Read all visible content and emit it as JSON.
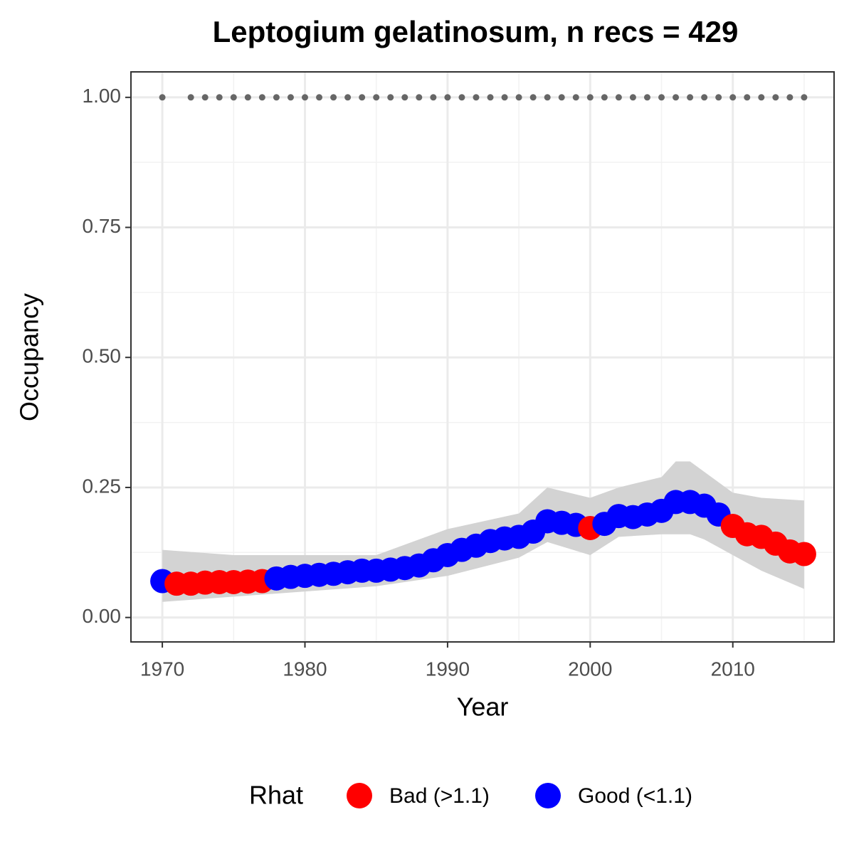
{
  "chart_data": {
    "type": "scatter",
    "title": "Leptogium gelatinosum, n recs = 429",
    "x_label": "Year",
    "y_label": "Occupancy",
    "legend_title": "Rhat",
    "xlim": [
      1967.8,
      2017.1
    ],
    "ylim": [
      -0.047,
      1.049
    ],
    "xticks": [
      1970,
      1980,
      1990,
      2000,
      2010
    ],
    "x_minor_ticks": [
      1975,
      1985,
      1995,
      2005,
      2015
    ],
    "yticks": [
      {
        "value": 0,
        "label": "0.00"
      },
      {
        "value": 0.25,
        "label": "0.25"
      },
      {
        "value": 0.5,
        "label": "0.50"
      },
      {
        "value": 0.75,
        "label": "0.75"
      },
      {
        "value": 1,
        "label": "1.00"
      }
    ],
    "y_minor_ticks": [
      0.125,
      0.375,
      0.625,
      0.875
    ],
    "grid": true,
    "x": [
      1970,
      1971,
      1972,
      1973,
      1974,
      1975,
      1976,
      1977,
      1978,
      1979,
      1980,
      1981,
      1982,
      1983,
      1984,
      1985,
      1986,
      1987,
      1988,
      1989,
      1990,
      1991,
      1992,
      1993,
      1994,
      1995,
      1996,
      1997,
      1998,
      1999,
      2000,
      2001,
      2002,
      2003,
      2004,
      2005,
      2006,
      2007,
      2008,
      2009,
      2010,
      2011,
      2012,
      2013,
      2014,
      2015
    ],
    "series": [
      {
        "name": "Bad (>1.1)",
        "color": "#ff0000",
        "values": [
          null,
          0.065,
          0.065,
          0.067,
          0.068,
          0.068,
          0.069,
          0.07,
          null,
          null,
          null,
          null,
          null,
          null,
          null,
          null,
          null,
          null,
          null,
          null,
          null,
          null,
          null,
          null,
          null,
          null,
          null,
          null,
          null,
          null,
          0.172,
          null,
          null,
          null,
          null,
          null,
          null,
          null,
          null,
          null,
          0.176,
          0.16,
          0.155,
          0.142,
          0.127,
          0.122
        ]
      },
      {
        "name": "Good (<1.1)",
        "color": "#0000ff",
        "values": [
          0.07,
          null,
          null,
          null,
          null,
          null,
          null,
          null,
          0.075,
          0.078,
          0.08,
          0.082,
          0.084,
          0.087,
          0.09,
          0.09,
          0.092,
          0.095,
          0.1,
          0.11,
          0.12,
          0.13,
          0.138,
          0.147,
          0.152,
          0.155,
          0.165,
          0.185,
          0.182,
          0.178,
          null,
          0.18,
          0.195,
          0.193,
          0.198,
          0.205,
          0.222,
          0.222,
          0.215,
          0.198,
          null,
          null,
          null,
          null,
          null,
          null
        ]
      }
    ],
    "ribbon": {
      "color": "#d3d3d3",
      "x": [
        1970,
        1975,
        1980,
        1985,
        1990,
        1995,
        1997,
        2000,
        2002,
        2005,
        2006,
        2007,
        2008,
        2010,
        2012,
        2015
      ],
      "upper": [
        0.13,
        0.12,
        0.12,
        0.12,
        0.17,
        0.2,
        0.25,
        0.23,
        0.25,
        0.27,
        0.3,
        0.3,
        0.28,
        0.24,
        0.23,
        0.225
      ],
      "lower": [
        0.03,
        0.04,
        0.05,
        0.06,
        0.08,
        0.115,
        0.145,
        0.12,
        0.155,
        0.16,
        0.16,
        0.16,
        0.15,
        0.12,
        0.09,
        0.055
      ]
    },
    "detections": {
      "color": "#666666",
      "x": [
        1970,
        1972,
        1973,
        1974,
        1975,
        1976,
        1977,
        1978,
        1979,
        1980,
        1981,
        1982,
        1983,
        1984,
        1985,
        1986,
        1987,
        1988,
        1989,
        1990,
        1991,
        1992,
        1993,
        1994,
        1995,
        1996,
        1997,
        1998,
        1999,
        2000,
        2001,
        2002,
        2003,
        2004,
        2005,
        2006,
        2007,
        2008,
        2009,
        2010,
        2011,
        2012,
        2013,
        2014,
        2015
      ],
      "values": [
        1,
        1,
        1,
        1,
        1,
        1,
        1,
        1,
        1,
        1,
        1,
        1,
        1,
        1,
        1,
        1,
        1,
        1,
        1,
        1,
        1,
        1,
        1,
        1,
        1,
        1,
        1,
        1,
        1,
        1,
        1,
        1,
        1,
        1,
        1,
        1,
        1,
        1,
        1,
        1,
        1,
        1,
        1,
        1,
        1
      ]
    }
  }
}
